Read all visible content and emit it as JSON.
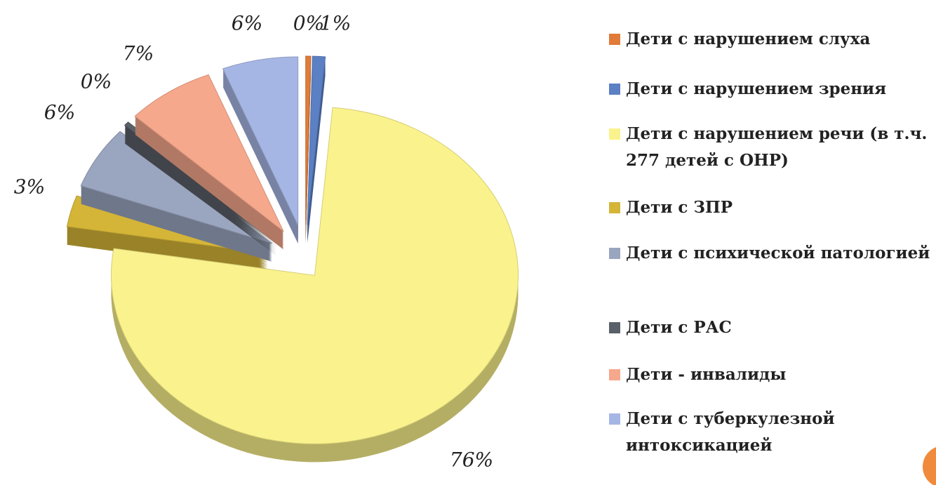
{
  "chart_data": {
    "type": "pie",
    "categories": [
      "Дети с нарушением слуха",
      "Дети с нарушением зрения",
      "Дети с нарушением речи (в т.ч. 277 детей с ОНР)",
      "Дети с ЗПР",
      "Дети с психической патологией",
      "Дети с РАС",
      "Дети - инвалиды",
      "Дети с туберкулезной интоксикацией"
    ],
    "values": [
      0.4,
      1,
      76,
      3,
      6,
      0.4,
      7,
      6
    ],
    "value_labels": [
      "0%",
      "1%",
      "76%",
      "3%",
      "6%",
      "0%",
      "7%",
      "6%"
    ],
    "colors": [
      "#e07b39",
      "#5b80c4",
      "#faf28c",
      "#d4b537",
      "#9aa5bf",
      "#5a6068",
      "#f6a88c",
      "#a6b6e4"
    ],
    "legend": "right"
  }
}
